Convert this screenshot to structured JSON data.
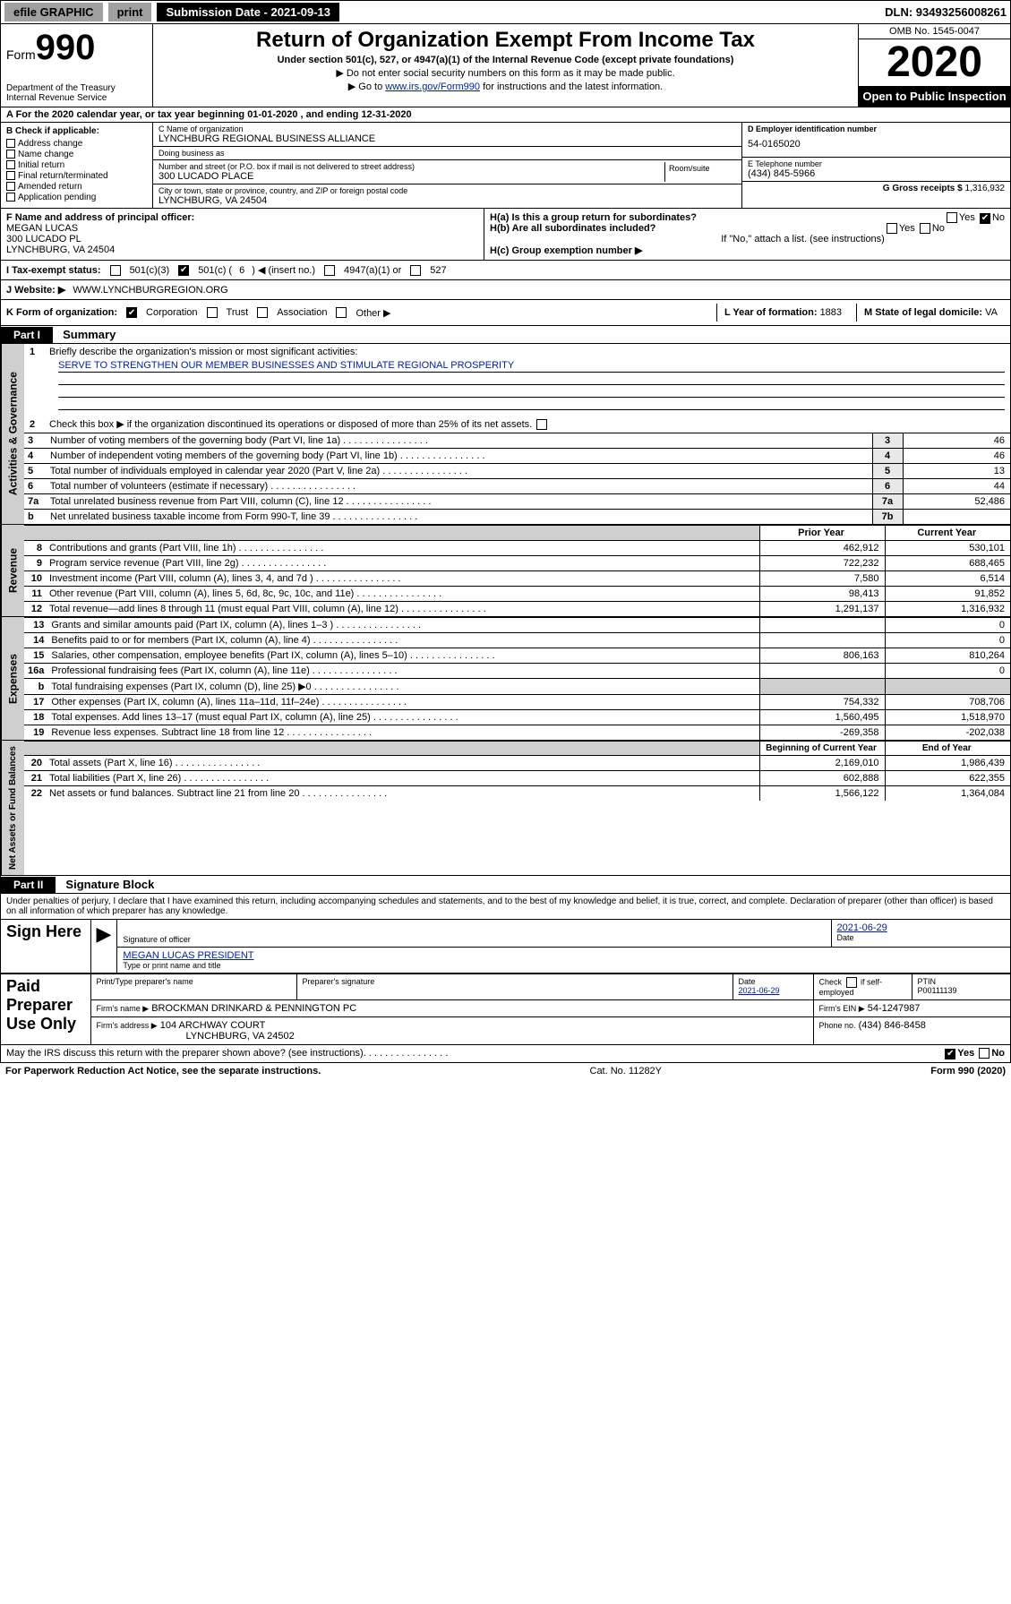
{
  "topbar": {
    "efile": "efile GRAPHIC",
    "print": "print",
    "submission": "Submission Date - 2021-09-13",
    "dln": "DLN: 93493256008261"
  },
  "header": {
    "form_prefix": "Form",
    "form_num": "990",
    "dept": "Department of the Treasury\nInternal Revenue Service",
    "title": "Return of Organization Exempt From Income Tax",
    "sub1": "Under section 501(c), 527, or 4947(a)(1) of the Internal Revenue Code (except private foundations)",
    "sub2": "▶ Do not enter social security numbers on this form as it may be made public.",
    "sub3_pre": "▶ Go to ",
    "sub3_link": "www.irs.gov/Form990",
    "sub3_post": " for instructions and the latest information.",
    "omb": "OMB No. 1545-0047",
    "year": "2020",
    "open": "Open to Public Inspection"
  },
  "row_a": "A For the 2020 calendar year, or tax year beginning 01-01-2020   , and ending 12-31-2020",
  "col_b": {
    "hdr": "B Check if applicable:",
    "items": [
      "Address change",
      "Name change",
      "Initial return",
      "Final return/terminated",
      "Amended return",
      "Application pending"
    ]
  },
  "col_c": {
    "name_lab": "C Name of organization",
    "name": "LYNCHBURG REGIONAL BUSINESS ALLIANCE",
    "dba_lab": "Doing business as",
    "dba": "",
    "addr_lab": "Number and street (or P.O. box if mail is not delivered to street address)",
    "addr": "300 LUCADO PLACE",
    "room_lab": "Room/suite",
    "city_lab": "City or town, state or province, country, and ZIP or foreign postal code",
    "city": "LYNCHBURG, VA  24504"
  },
  "col_d": {
    "lab": "D Employer identification number",
    "val": "54-0165020"
  },
  "col_e": {
    "lab": "E Telephone number",
    "val": "(434) 845-5966"
  },
  "col_g": {
    "lab": "G Gross receipts $",
    "val": "1,316,932"
  },
  "f": {
    "lab": "F  Name and address of principal officer:",
    "name": "MEGAN LUCAS",
    "addr1": "300 LUCADO PL",
    "addr2": "LYNCHBURG, VA  24504"
  },
  "h": {
    "a_lab": "H(a)  Is this a group return for subordinates?",
    "b_lab": "H(b)  Are all subordinates included?",
    "b_note": "If \"No,\" attach a list. (see instructions)",
    "c_lab": "H(c)  Group exemption number ▶",
    "yes": "Yes",
    "no": "No"
  },
  "i": {
    "lab": "I   Tax-exempt status:",
    "c3": "501(c)(3)",
    "c_pre": "501(c) (",
    "c_num": "6",
    "c_post": ") ◀ (insert no.)",
    "a1": "4947(a)(1) or",
    "c527": "527"
  },
  "j": {
    "lab": "J   Website: ▶",
    "val": "WWW.LYNCHBURGREGION.ORG"
  },
  "k": {
    "lab": "K Form of organization:",
    "corp": "Corporation",
    "trust": "Trust",
    "assoc": "Association",
    "other": "Other ▶",
    "l_lab": "L Year of formation:",
    "l_val": "1883",
    "m_lab": "M State of legal domicile:",
    "m_val": "VA"
  },
  "part1": {
    "label": "Part I",
    "title": "Summary"
  },
  "gov": {
    "label": "Activities & Governance",
    "q1": "Briefly describe the organization's mission or most significant activities:",
    "mission": "SERVE TO STRENGTHEN OUR MEMBER BUSINESSES AND STIMULATE REGIONAL PROSPERITY",
    "q2": "Check this box ▶        if the organization discontinued its operations or disposed of more than 25% of its net assets.",
    "rows": [
      {
        "n": "3",
        "t": "Number of voting members of the governing body (Part VI, line 1a)",
        "box": "3",
        "v": "46"
      },
      {
        "n": "4",
        "t": "Number of independent voting members of the governing body (Part VI, line 1b)",
        "box": "4",
        "v": "46"
      },
      {
        "n": "5",
        "t": "Total number of individuals employed in calendar year 2020 (Part V, line 2a)",
        "box": "5",
        "v": "13"
      },
      {
        "n": "6",
        "t": "Total number of volunteers (estimate if necessary)",
        "box": "6",
        "v": "44"
      },
      {
        "n": "7a",
        "t": "Total unrelated business revenue from Part VIII, column (C), line 12",
        "box": "7a",
        "v": "52,486"
      },
      {
        "n": "b",
        "t": "Net unrelated business taxable income from Form 990-T, line 39",
        "box": "7b",
        "v": ""
      }
    ]
  },
  "rev": {
    "label": "Revenue",
    "py_h": "Prior Year",
    "cy_h": "Current Year",
    "rows": [
      {
        "n": "8",
        "t": "Contributions and grants (Part VIII, line 1h)",
        "py": "462,912",
        "cy": "530,101"
      },
      {
        "n": "9",
        "t": "Program service revenue (Part VIII, line 2g)",
        "py": "722,232",
        "cy": "688,465"
      },
      {
        "n": "10",
        "t": "Investment income (Part VIII, column (A), lines 3, 4, and 7d )",
        "py": "7,580",
        "cy": "6,514"
      },
      {
        "n": "11",
        "t": "Other revenue (Part VIII, column (A), lines 5, 6d, 8c, 9c, 10c, and 11e)",
        "py": "98,413",
        "cy": "91,852"
      },
      {
        "n": "12",
        "t": "Total revenue—add lines 8 through 11 (must equal Part VIII, column (A), line 12)",
        "py": "1,291,137",
        "cy": "1,316,932"
      }
    ]
  },
  "exp": {
    "label": "Expenses",
    "rows": [
      {
        "n": "13",
        "t": "Grants and similar amounts paid (Part IX, column (A), lines 1–3 )",
        "py": "",
        "cy": "0"
      },
      {
        "n": "14",
        "t": "Benefits paid to or for members (Part IX, column (A), line 4)",
        "py": "",
        "cy": "0"
      },
      {
        "n": "15",
        "t": "Salaries, other compensation, employee benefits (Part IX, column (A), lines 5–10)",
        "py": "806,163",
        "cy": "810,264"
      },
      {
        "n": "16a",
        "t": "Professional fundraising fees (Part IX, column (A), line 11e)",
        "py": "",
        "cy": "0"
      },
      {
        "n": "b",
        "t": "Total fundraising expenses (Part IX, column (D), line 25) ▶0",
        "py": "GREY",
        "cy": "GREY"
      },
      {
        "n": "17",
        "t": "Other expenses (Part IX, column (A), lines 11a–11d, 11f–24e)",
        "py": "754,332",
        "cy": "708,706"
      },
      {
        "n": "18",
        "t": "Total expenses. Add lines 13–17 (must equal Part IX, column (A), line 25)",
        "py": "1,560,495",
        "cy": "1,518,970"
      },
      {
        "n": "19",
        "t": "Revenue less expenses. Subtract line 18 from line 12",
        "py": "-269,358",
        "cy": "-202,038"
      }
    ]
  },
  "na": {
    "label": "Net Assets or Fund Balances",
    "py_h": "Beginning of Current Year",
    "cy_h": "End of Year",
    "rows": [
      {
        "n": "20",
        "t": "Total assets (Part X, line 16)",
        "py": "2,169,010",
        "cy": "1,986,439"
      },
      {
        "n": "21",
        "t": "Total liabilities (Part X, line 26)",
        "py": "602,888",
        "cy": "622,355"
      },
      {
        "n": "22",
        "t": "Net assets or fund balances. Subtract line 21 from line 20",
        "py": "1,566,122",
        "cy": "1,364,084"
      }
    ]
  },
  "part2": {
    "label": "Part II",
    "title": "Signature Block"
  },
  "sig": {
    "decl": "Under penalties of perjury, I declare that I have examined this return, including accompanying schedules and statements, and to the best of my knowledge and belief, it is true, correct, and complete. Declaration of preparer (other than officer) is based on all information of which preparer has any knowledge.",
    "sign_here": "Sign Here",
    "sig_of_officer": "Signature of officer",
    "date": "2021-06-29",
    "date_lab": "Date",
    "name": "MEGAN LUCAS PRESIDENT",
    "name_lab": "Type or print name and title"
  },
  "prep": {
    "label": "Paid Preparer Use Only",
    "h1": "Print/Type preparer's name",
    "h2": "Preparer's signature",
    "h3": "Date",
    "date": "2021-06-29",
    "h4_pre": "Check",
    "h4_post": "if self-employed",
    "h5": "PTIN",
    "ptin": "P00111139",
    "firm_lab": "Firm's name   ▶",
    "firm": "BROCKMAN DRINKARD & PENNINGTON PC",
    "ein_lab": "Firm's EIN ▶",
    "ein": "54-1247987",
    "addr_lab": "Firm's address ▶",
    "addr1": "104 ARCHWAY COURT",
    "addr2": "LYNCHBURG, VA  24502",
    "phone_lab": "Phone no.",
    "phone": "(434) 846-8458"
  },
  "footer": {
    "discuss": "May the IRS discuss this return with the preparer shown above? (see instructions)",
    "yes": "Yes",
    "no": "No",
    "pra": "For Paperwork Reduction Act Notice, see the separate instructions.",
    "cat": "Cat. No. 11282Y",
    "form": "Form 990 (2020)"
  }
}
